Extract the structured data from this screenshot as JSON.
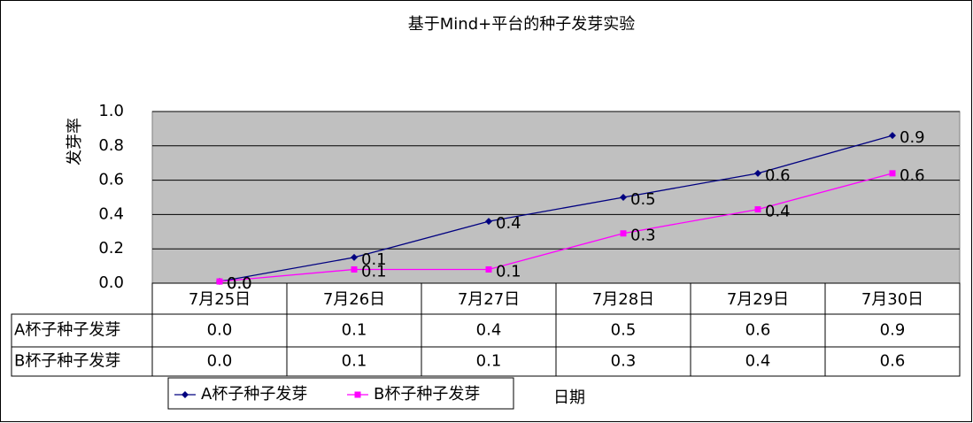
{
  "chart_data": {
    "type": "line",
    "title": "基于Mind+平台的种子发芽实验",
    "x_label": "日期",
    "y_label": "发芽率",
    "categories": [
      "7月25日",
      "7月26日",
      "7月27日",
      "7月28日",
      "7月29日",
      "7月30日"
    ],
    "series": [
      {
        "name": "A杯子种子发芽",
        "color": "#000080",
        "marker": "diamond",
        "values": [
          0.01,
          0.15,
          0.36,
          0.5,
          0.64,
          0.86
        ],
        "value_labels": [
          "0.0",
          "0.1",
          "0.4",
          "0.5",
          "0.6",
          "0.9"
        ]
      },
      {
        "name": "B杯子种子发芽",
        "color": "#ff00ff",
        "marker": "square",
        "values": [
          0.01,
          0.08,
          0.08,
          0.29,
          0.43,
          0.64
        ],
        "value_labels": [
          "0.0",
          "0.1",
          "0.1",
          "0.3",
          "0.4",
          "0.6"
        ]
      }
    ],
    "ylim": [
      0,
      1
    ],
    "yticks": [
      {
        "value": 0,
        "label": "0.0"
      },
      0.2,
      0.4,
      0.6,
      0.8,
      {
        "value": 1,
        "label": "1.0"
      }
    ],
    "grid": true,
    "legend": "bottom"
  }
}
